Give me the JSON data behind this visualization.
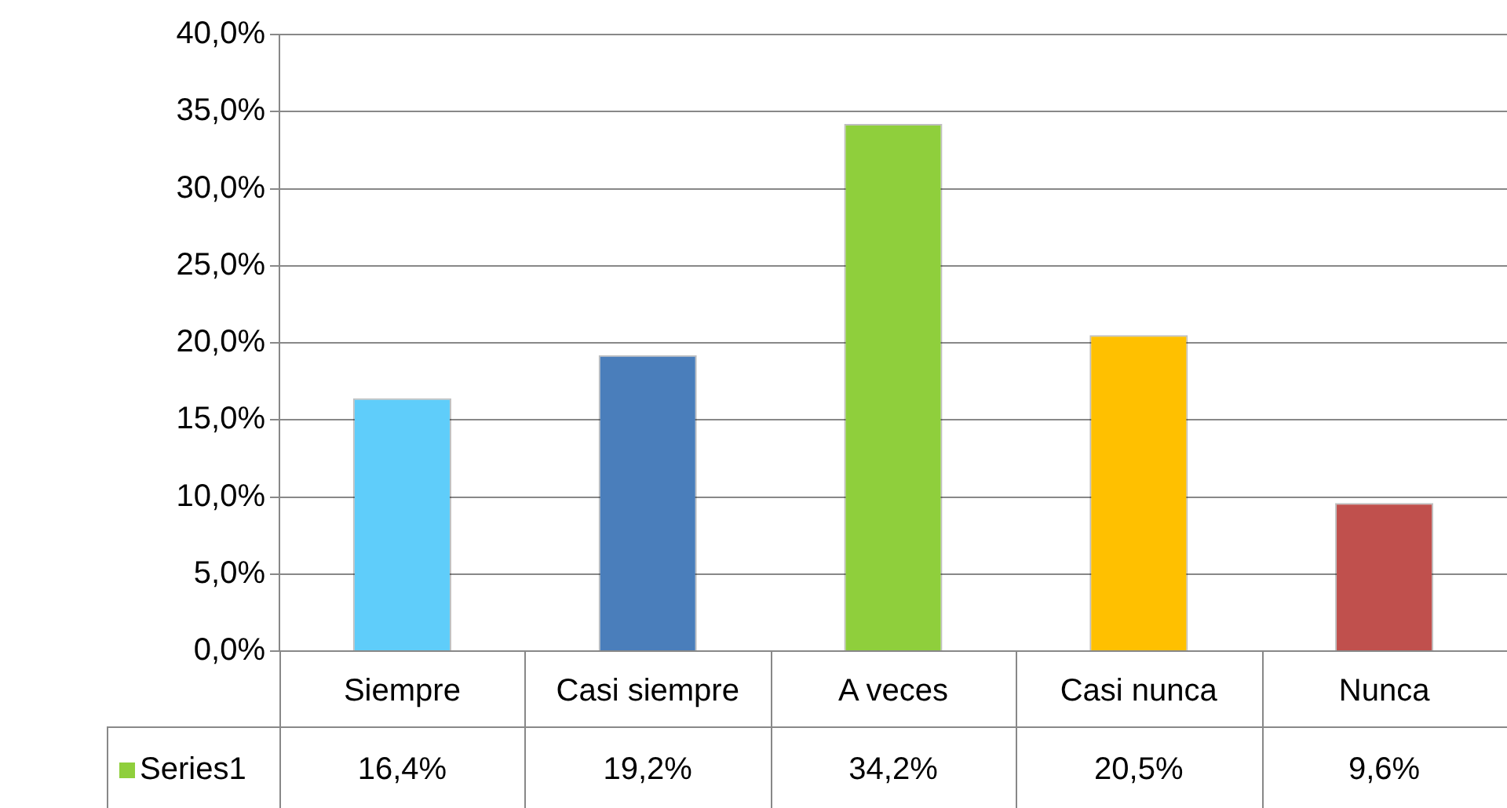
{
  "chart_data": {
    "type": "bar",
    "categories": [
      "Siempre",
      "Casi siempre",
      "A veces",
      "Casi nunca",
      "Nunca"
    ],
    "series": [
      {
        "name": "Series1",
        "color": "#8fcf3c",
        "colors": [
          "#5fcdfa",
          "#4a7ebb",
          "#8fcf3c",
          "#ffc000",
          "#c0504d"
        ],
        "values": [
          16.4,
          19.2,
          34.2,
          20.5,
          9.6
        ],
        "value_labels": [
          "16,4%",
          "19,2%",
          "34,2%",
          "20,5%",
          "9,6%"
        ]
      }
    ],
    "ylim": [
      0,
      40
    ],
    "yticks": [
      {
        "value": 0,
        "label": "0,0%"
      },
      {
        "value": 5,
        "label": "5,0%"
      },
      {
        "value": 10,
        "label": "10,0%"
      },
      {
        "value": 15,
        "label": "15,0%"
      },
      {
        "value": 20,
        "label": "20,0%"
      },
      {
        "value": 25,
        "label": "25,0%"
      },
      {
        "value": 30,
        "label": "30,0%"
      },
      {
        "value": 35,
        "label": "35,0%"
      },
      {
        "value": 40,
        "label": "40,0%"
      }
    ],
    "grid": "y",
    "legend": "bottom left"
  }
}
